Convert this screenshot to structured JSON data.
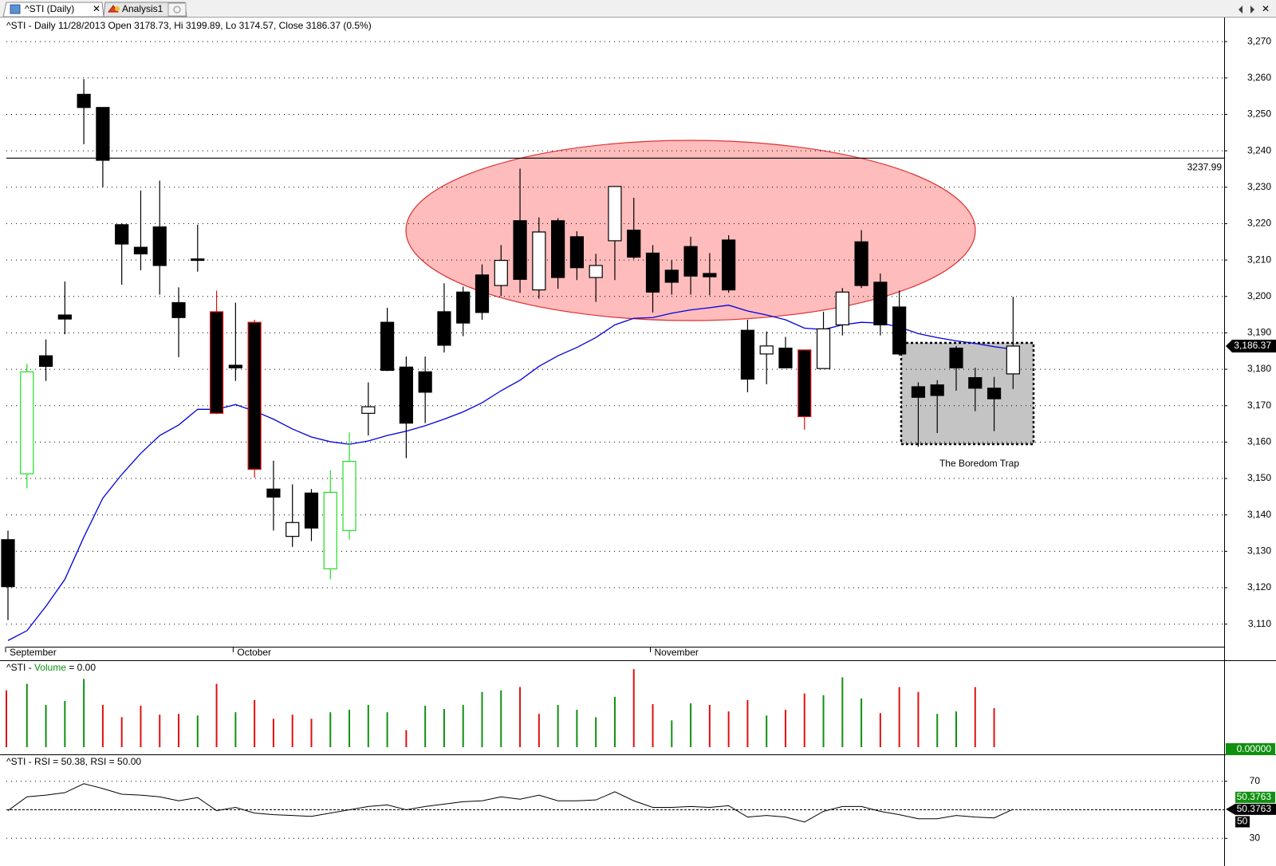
{
  "tabs": [
    "^STI (Daily)",
    "Analysis1"
  ],
  "chart_data": [
    {
      "type": "candlestick",
      "title": "^STI - Daily 11/28/2013 Open 3178.73, Hi 3199.89, Lo 3174.57, Close 3186.37 (0.5%)",
      "categories": [
        "September",
        null,
        null,
        null,
        null,
        null,
        null,
        null,
        null,
        null,
        null,
        null,
        "October",
        null,
        null,
        null,
        null,
        null,
        null,
        null,
        null,
        null,
        null,
        null,
        null,
        null,
        null,
        null,
        null,
        null,
        null,
        null,
        null,
        null,
        "November",
        null,
        null,
        null,
        null,
        null,
        null,
        null,
        null,
        null,
        null,
        null,
        null,
        null,
        null,
        null,
        null,
        null,
        null,
        null
      ],
      "open": [
        3133.2,
        3151.3,
        3183.7,
        3194.9,
        3255.5,
        3251.9,
        3219.7,
        3213.5,
        3219.1,
        3198.3,
        3210.3,
        3195.8,
        3181.1,
        3192.9,
        3147.1,
        3134.1,
        3146.0,
        3125.2,
        3135.7,
        3167.9,
        3192.9,
        3180.6,
        3179.3,
        3195.8,
        3201.2,
        3205.9,
        3203.0,
        3220.8,
        3201.8,
        3220.8,
        3216.4,
        3205.2,
        3215.3,
        3218.2,
        3211.9,
        3207.2,
        3213.7,
        3206.3,
        3215.5,
        3190.7,
        3184.2,
        3185.8,
        3185.3,
        3180.2,
        3192.2,
        3215.0,
        3203.9,
        3197.1,
        3175.2,
        3175.7,
        3185.8,
        3177.7,
        3174.8,
        3178.73
      ],
      "high": [
        3135.7,
        3181.5,
        3188.2,
        3204.1,
        3259.7,
        3251.9,
        3220.1,
        3229.1,
        3231.8,
        3202.5,
        3219.7,
        3201.6,
        3198.3,
        3193.6,
        3154.9,
        3148.4,
        3147.1,
        3152.2,
        3162.7,
        3176.4,
        3196.9,
        3183.5,
        3183.5,
        3203.6,
        3202.7,
        3208.8,
        3214.1,
        3235.1,
        3221.7,
        3221.5,
        3217.9,
        3211.7,
        3230.2,
        3227.1,
        3214.1,
        3209.9,
        3216.4,
        3211.9,
        3216.8,
        3193.6,
        3190.4,
        3188.9,
        3185.3,
        3195.8,
        3202.3,
        3218.2,
        3206.3,
        3201.6,
        3176.4,
        3177.0,
        3186.4,
        3180.4,
        3177.9,
        3199.89
      ],
      "low": [
        3111.1,
        3147.3,
        3176.8,
        3189.6,
        3241.8,
        3230.0,
        3203.2,
        3207.2,
        3200.5,
        3183.3,
        3206.8,
        3167.7,
        3176.8,
        3150.2,
        3135.7,
        3131.2,
        3132.8,
        3122.3,
        3133.2,
        3161.8,
        3179.5,
        3155.6,
        3165.2,
        3184.6,
        3189.1,
        3193.6,
        3200.1,
        3201.0,
        3199.4,
        3202.1,
        3204.5,
        3198.5,
        3204.5,
        3210.3,
        3195.6,
        3200.5,
        3200.5,
        3200.3,
        3201.0,
        3173.7,
        3175.9,
        3180.4,
        3163.4,
        3180.2,
        3189.3,
        3202.3,
        3189.3,
        3183.7,
        3158.7,
        3162.5,
        3174.1,
        3168.5,
        3163.0,
        3174.57
      ],
      "close": [
        3120.3,
        3179.3,
        3180.8,
        3193.8,
        3251.9,
        3237.4,
        3214.4,
        3211.7,
        3208.5,
        3194.2,
        3209.9,
        3167.9,
        3180.4,
        3152.5,
        3144.9,
        3137.9,
        3136.4,
        3146.2,
        3154.7,
        3169.7,
        3179.7,
        3165.2,
        3173.7,
        3186.6,
        3192.7,
        3195.6,
        3209.9,
        3204.7,
        3217.7,
        3205.2,
        3207.9,
        3208.5,
        3230.2,
        3210.8,
        3201.2,
        3203.9,
        3205.6,
        3205.4,
        3201.8,
        3177.3,
        3186.4,
        3180.4,
        3167.0,
        3191.1,
        3201.2,
        3203.0,
        3192.2,
        3184.2,
        3172.3,
        3172.8,
        3180.4,
        3174.8,
        3171.9,
        3186.37
      ],
      "up_color": "#ffffff",
      "down_color": "#000000",
      "outline_colors": [
        "#000000",
        "#22dd22",
        "#000000",
        "#000000",
        "#000000",
        "#000000",
        "#000000",
        "#000000",
        "#000000",
        "#000000",
        "#000000",
        "#e01010",
        "#000000",
        "#e01010",
        "#000000",
        "#000000",
        "#000000",
        "#22dd22",
        "#22dd22",
        "#000000",
        "#000000",
        "#000000",
        "#000000",
        "#000000",
        "#000000",
        "#000000",
        "#000000",
        "#000000",
        "#000000",
        "#000000",
        "#000000",
        "#000000",
        "#000000",
        "#000000",
        "#000000",
        "#000000",
        "#000000",
        "#000000",
        "#000000",
        "#000000",
        "#000000",
        "#000000",
        "#e01010",
        "#000000",
        "#000000",
        "#000000",
        "#000000",
        "#000000",
        "#000000",
        "#000000",
        "#000000",
        "#000000",
        "#000000",
        "#000000"
      ],
      "overlay": {
        "color": "#0000dd",
        "values": [
          3105.5,
          3108.2,
          3114.9,
          3122.3,
          3133.9,
          3144.6,
          3151.1,
          3156.9,
          3161.8,
          3164.7,
          3169.0,
          3169.0,
          3170.3,
          3168.5,
          3166.3,
          3163.6,
          3161.4,
          3160.1,
          3159.4,
          3160.3,
          3161.8,
          3163.0,
          3164.5,
          3166.3,
          3168.3,
          3170.8,
          3174.1,
          3177.0,
          3180.8,
          3183.7,
          3186.0,
          3188.7,
          3192.2,
          3194.0,
          3194.2,
          3195.4,
          3196.3,
          3196.9,
          3197.6,
          3196.0,
          3194.9,
          3193.6,
          3191.3,
          3190.9,
          3192.2,
          3192.9,
          3192.7,
          3191.6,
          3189.8,
          3188.7,
          3187.8,
          3187.1,
          3186.2,
          3185.5
        ]
      },
      "hline": {
        "value": 3237.99,
        "color": "#000000"
      },
      "last_label": "3,186.37",
      "annotation": "The Boredom Trap",
      "ylim": [
        3103.8,
        3276.6
      ],
      "yticks": [
        {
          "value": 3110,
          "label": "3,110"
        },
        {
          "value": 3120,
          "label": "3,120"
        },
        {
          "value": 3130,
          "label": "3,130"
        },
        {
          "value": 3140,
          "label": "3,140"
        },
        {
          "value": 3150,
          "label": "3,150"
        },
        {
          "value": 3160,
          "label": "3,160"
        },
        {
          "value": 3170,
          "label": "3,170"
        },
        {
          "value": 3180,
          "label": "3,180"
        },
        {
          "value": 3190,
          "label": "3,190"
        },
        {
          "value": 3200,
          "label": "3,200"
        },
        {
          "value": 3210,
          "label": "3,210"
        },
        {
          "value": 3220,
          "label": "3,220"
        },
        {
          "value": 3230,
          "label": "3,230"
        },
        {
          "value": 3240,
          "label": "3,240"
        },
        {
          "value": 3250,
          "label": "3,250"
        },
        {
          "value": 3260,
          "label": "3,260"
        },
        {
          "value": 3270,
          "label": "3,270"
        }
      ],
      "grid": true
    },
    {
      "type": "bar",
      "title": [
        "^STI - ",
        "Volume",
        " = 0.00"
      ],
      "values": [
        70,
        78,
        52,
        57,
        84,
        52,
        37,
        51,
        40,
        41,
        39,
        78,
        43,
        58,
        35,
        40,
        35,
        43,
        46,
        52,
        43,
        21,
        51,
        47,
        52,
        68,
        70,
        74,
        41,
        52,
        46,
        37,
        62,
        96,
        53,
        33,
        54,
        52,
        44,
        58,
        39,
        46,
        66,
        64,
        86,
        60,
        42,
        74,
        68,
        41,
        44,
        74,
        48,
        0
      ],
      "colors": [
        "#e01010",
        "#109010",
        "#109010",
        "#109010",
        "#109010",
        "#e01010",
        "#e01010",
        "#e01010",
        "#e01010",
        "#e01010",
        "#109010",
        "#e01010",
        "#109010",
        "#e01010",
        "#e01010",
        "#e01010",
        "#e01010",
        "#109010",
        "#109010",
        "#109010",
        "#109010",
        "#e01010",
        "#109010",
        "#109010",
        "#109010",
        "#109010",
        "#109010",
        "#e01010",
        "#e01010",
        "#109010",
        "#109010",
        "#109010",
        "#109010",
        "#e01010",
        "#e01010",
        "#109010",
        "#109010",
        "#e01010",
        "#e01010",
        "#e01010",
        "#109010",
        "#e01010",
        "#e01010",
        "#109010",
        "#109010",
        "#109010",
        "#e01010",
        "#e01010",
        "#e01010",
        "#109010",
        "#109010",
        "#e01010",
        "#e01010",
        "#e01010"
      ],
      "ylim": [
        0,
        106
      ],
      "last_label": "0.00000"
    },
    {
      "type": "line",
      "title": "^STI - RSI = 50.38, RSI = 50.00",
      "values": [
        49.4,
        59.1,
        60.3,
        62.0,
        68.3,
        64.9,
        60.9,
        60.3,
        59.1,
        56.3,
        58.6,
        49.4,
        51.7,
        47.7,
        46.6,
        46.0,
        45.4,
        47.7,
        50.0,
        52.3,
        53.4,
        50.0,
        52.3,
        54.0,
        55.7,
        56.3,
        59.1,
        57.4,
        60.3,
        56.3,
        56.3,
        56.9,
        62.6,
        56.3,
        51.7,
        51.7,
        52.3,
        51.7,
        52.9,
        44.9,
        46.0,
        44.9,
        41.4,
        48.9,
        52.3,
        52.3,
        48.9,
        46.6,
        43.7,
        43.7,
        46.0,
        44.9,
        44.3,
        50.3763
      ],
      "color": "#000000",
      "reference": 50,
      "ylim": [
        10.6,
        88.3
      ],
      "yticks": [
        30,
        70
      ],
      "grid": true
    }
  ]
}
